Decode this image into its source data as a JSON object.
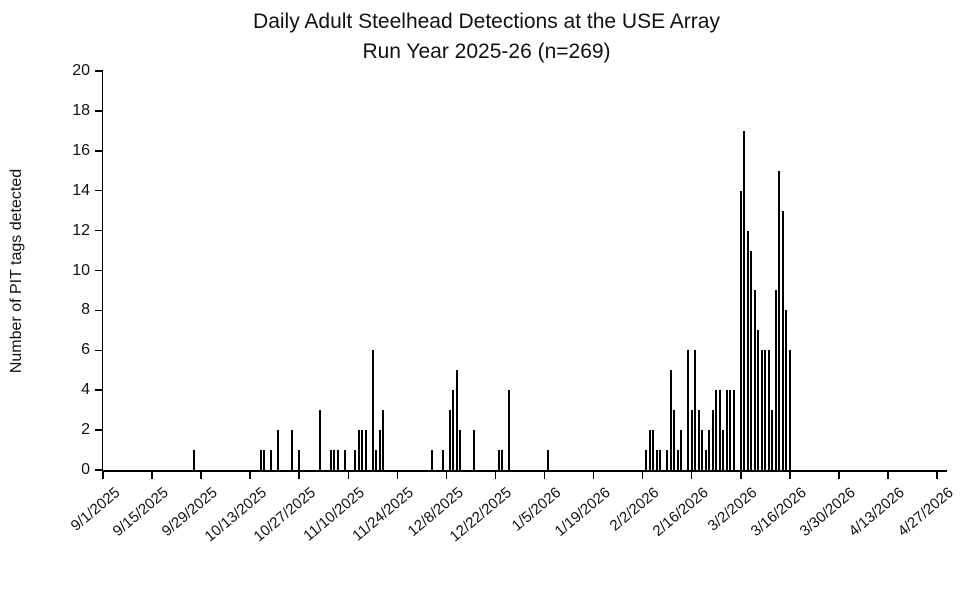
{
  "title": {
    "line1": "Daily Adult Steelhead Detections at the USE Array",
    "line2": "Run Year 2025-26 (n=269)"
  },
  "colors": {
    "bar": "#000000",
    "axis": "#000000",
    "text": "#111111",
    "background": "#ffffff"
  },
  "chart_data": {
    "type": "bar",
    "title": "Daily Adult Steelhead Detections at the USE Array",
    "subtitle": "Run Year 2025-26 (n=269)",
    "total_detections": 269,
    "xlabel": "",
    "ylabel": "Number of PIT tags detected",
    "ylim": [
      0,
      20
    ],
    "yticks": [
      0,
      2,
      4,
      6,
      8,
      10,
      12,
      14,
      16,
      18,
      20
    ],
    "x_axis_start": "9/1/2025",
    "x_axis_end": "4/27/2026",
    "xtick_interval_days": 14,
    "xticks": [
      "9/1/2025",
      "9/15/2025",
      "9/29/2025",
      "10/13/2025",
      "10/27/2025",
      "11/10/2025",
      "11/24/2025",
      "12/8/2025",
      "12/22/2025",
      "1/5/2026",
      "1/19/2026",
      "2/2/2026",
      "2/16/2026",
      "3/2/2026",
      "3/16/2026",
      "3/30/2026",
      "4/13/2026",
      "4/27/2026"
    ],
    "grid": false,
    "legend": "none",
    "points": [
      {
        "date": "9/27/2025",
        "value": 1
      },
      {
        "date": "10/16/2025",
        "value": 1
      },
      {
        "date": "10/17/2025",
        "value": 1
      },
      {
        "date": "10/19/2025",
        "value": 1
      },
      {
        "date": "10/21/2025",
        "value": 2
      },
      {
        "date": "10/25/2025",
        "value": 2
      },
      {
        "date": "10/27/2025",
        "value": 1
      },
      {
        "date": "11/2/2025",
        "value": 3
      },
      {
        "date": "11/5/2025",
        "value": 1
      },
      {
        "date": "11/6/2025",
        "value": 1
      },
      {
        "date": "11/7/2025",
        "value": 1
      },
      {
        "date": "11/9/2025",
        "value": 1
      },
      {
        "date": "11/12/2025",
        "value": 1
      },
      {
        "date": "11/13/2025",
        "value": 2
      },
      {
        "date": "11/14/2025",
        "value": 2
      },
      {
        "date": "11/15/2025",
        "value": 2
      },
      {
        "date": "11/17/2025",
        "value": 6
      },
      {
        "date": "11/18/2025",
        "value": 1
      },
      {
        "date": "11/19/2025",
        "value": 2
      },
      {
        "date": "11/20/2025",
        "value": 3
      },
      {
        "date": "12/4/2025",
        "value": 1
      },
      {
        "date": "12/7/2025",
        "value": 1
      },
      {
        "date": "12/9/2025",
        "value": 3
      },
      {
        "date": "12/10/2025",
        "value": 4
      },
      {
        "date": "12/11/2025",
        "value": 5
      },
      {
        "date": "12/12/2025",
        "value": 2
      },
      {
        "date": "12/16/2025",
        "value": 2
      },
      {
        "date": "12/23/2025",
        "value": 1
      },
      {
        "date": "12/24/2025",
        "value": 1
      },
      {
        "date": "12/26/2025",
        "value": 4
      },
      {
        "date": "1/6/2026",
        "value": 1
      },
      {
        "date": "2/3/2026",
        "value": 1
      },
      {
        "date": "2/4/2026",
        "value": 2
      },
      {
        "date": "2/5/2026",
        "value": 2
      },
      {
        "date": "2/6/2026",
        "value": 1
      },
      {
        "date": "2/7/2026",
        "value": 1
      },
      {
        "date": "2/9/2026",
        "value": 1
      },
      {
        "date": "2/10/2026",
        "value": 5
      },
      {
        "date": "2/11/2026",
        "value": 3
      },
      {
        "date": "2/12/2026",
        "value": 1
      },
      {
        "date": "2/13/2026",
        "value": 2
      },
      {
        "date": "2/15/2026",
        "value": 6
      },
      {
        "date": "2/16/2026",
        "value": 3
      },
      {
        "date": "2/17/2026",
        "value": 6
      },
      {
        "date": "2/18/2026",
        "value": 3
      },
      {
        "date": "2/19/2026",
        "value": 2
      },
      {
        "date": "2/20/2026",
        "value": 1
      },
      {
        "date": "2/21/2026",
        "value": 2
      },
      {
        "date": "2/22/2026",
        "value": 3
      },
      {
        "date": "2/23/2026",
        "value": 4
      },
      {
        "date": "2/24/2026",
        "value": 4
      },
      {
        "date": "2/25/2026",
        "value": 2
      },
      {
        "date": "2/26/2026",
        "value": 4
      },
      {
        "date": "2/27/2026",
        "value": 4
      },
      {
        "date": "2/28/2026",
        "value": 4
      },
      {
        "date": "3/2/2026",
        "value": 14
      },
      {
        "date": "3/3/2026",
        "value": 17
      },
      {
        "date": "3/4/2026",
        "value": 12
      },
      {
        "date": "3/5/2026",
        "value": 11
      },
      {
        "date": "3/6/2026",
        "value": 9
      },
      {
        "date": "3/7/2026",
        "value": 7
      },
      {
        "date": "3/8/2026",
        "value": 6
      },
      {
        "date": "3/9/2026",
        "value": 6
      },
      {
        "date": "3/10/2026",
        "value": 6
      },
      {
        "date": "3/11/2026",
        "value": 3
      },
      {
        "date": "3/12/2026",
        "value": 9
      },
      {
        "date": "3/13/2026",
        "value": 15
      },
      {
        "date": "3/14/2026",
        "value": 13
      },
      {
        "date": "3/15/2026",
        "value": 8
      },
      {
        "date": "3/16/2026",
        "value": 6
      }
    ]
  }
}
